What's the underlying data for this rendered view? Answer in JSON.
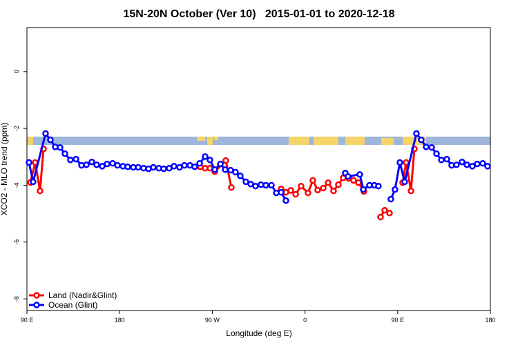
{
  "chart_data": {
    "type": "line",
    "title": "15N-20N October (Ver 10)   2015-01-01 to 2020-12-18",
    "x_label": "Longitude (deg E)",
    "y_label": "XCO2 - MLO trend (ppm)",
    "xlim": [
      90,
      540
    ],
    "xticks": [
      {
        "value": 90,
        "label": "90 E"
      },
      {
        "value": 180,
        "label": "180"
      },
      {
        "value": 270,
        "label": "90 W"
      },
      {
        "value": 360,
        "label": "0"
      },
      {
        "value": 450,
        "label": "90 E"
      },
      {
        "value": 540,
        "label": "180"
      }
    ],
    "ylim": [
      -8.41,
      1.55
    ],
    "yticks": [
      0,
      -2,
      -4,
      -6,
      -8
    ],
    "legend": "bottom-left",
    "series": [
      {
        "name": "Land (Nadir&Glint)",
        "color": "#ff0000",
        "x": [
          93.4,
          98.0,
          102.7,
          106.1,
          null,
          258.3,
          263.0,
          267.7,
          272.4,
          283.1,
          288.5,
          null,
          336.8,
          341.5,
          346.2,
          350.9,
          356.2,
          362.9,
          367.6,
          372.3,
          377.7,
          382.4,
          387.7,
          392.4,
          397.1,
          402.5,
          407.2,
          411.9,
          417.2,
          null,
          433.3,
          437.4,
          442.1,
          null,
          454.8,
          458.2,
          462.9,
          466.2
        ],
        "values": [
          -3.9,
          -3.2,
          -4.2,
          -2.72,
          null,
          -3.35,
          -3.4,
          -3.4,
          -3.52,
          -3.13,
          -4.08,
          null,
          -4.13,
          -4.25,
          -4.18,
          -4.32,
          -4.03,
          -4.27,
          -3.83,
          -4.17,
          -4.1,
          -3.91,
          -4.2,
          -3.98,
          -3.74,
          -3.76,
          -3.83,
          -3.91,
          -4.22,
          null,
          -5.12,
          -4.88,
          -4.98,
          null,
          -3.91,
          -3.2,
          -4.2,
          -2.72
        ]
      },
      {
        "name": "Ocean (Glint)",
        "color": "#0000ff",
        "x": [
          92.0,
          96.0,
          108.1,
          112.8,
          117.5,
          122.2,
          126.9,
          132.2,
          137.6,
          143.0,
          147.7,
          153.0,
          157.7,
          163.1,
          167.8,
          173.2,
          177.9,
          183.2,
          187.9,
          193.3,
          198.0,
          203.3,
          208.0,
          212.7,
          218.1,
          222.8,
          228.1,
          232.8,
          238.2,
          242.9,
          248.3,
          253.0,
          257.7,
          263.0,
          267.7,
          272.4,
          277.8,
          282.5,
          287.8,
          292.5,
          297.2,
          302.6,
          307.3,
          312.0,
          317.3,
          322.0,
          327.4,
          332.1,
          336.8,
          341.5,
          null,
          399.1,
          401.8,
          413.2,
          416.6,
          422.6,
          427.3,
          431.3,
          null,
          443.4,
          447.4,
          452.1,
          456.8,
          468.2,
          472.9,
          477.6,
          483.0,
          487.7,
          492.4,
          497.7,
          502.4,
          507.1,
          512.5,
          517.2,
          522.5,
          527.2,
          532.6,
          537.3
        ],
        "values": [
          -3.2,
          -3.88,
          -2.18,
          -2.4,
          -2.65,
          -2.67,
          -2.89,
          -3.11,
          -3.08,
          -3.3,
          -3.28,
          -3.18,
          -3.28,
          -3.33,
          -3.25,
          -3.23,
          -3.3,
          -3.33,
          -3.35,
          -3.37,
          -3.37,
          -3.4,
          -3.42,
          -3.37,
          -3.4,
          -3.42,
          -3.4,
          -3.33,
          -3.37,
          -3.3,
          -3.3,
          -3.35,
          -3.23,
          -2.99,
          -3.11,
          -3.45,
          -3.25,
          -3.45,
          -3.47,
          -3.54,
          -3.67,
          -3.88,
          -3.96,
          -4.03,
          -3.98,
          -4.0,
          -4.0,
          -4.27,
          -4.25,
          -4.54,
          null,
          -3.57,
          -3.69,
          -3.62,
          -4.15,
          -4.0,
          -4.0,
          -4.03,
          null,
          -4.49,
          -4.15,
          -3.2,
          -3.88,
          -2.18,
          -2.4,
          -2.65,
          -2.67,
          -2.89,
          -3.11,
          -3.08,
          -3.3,
          -3.28,
          -3.18,
          -3.28,
          -3.33,
          -3.25,
          -3.23,
          -3.33
        ]
      }
    ]
  }
}
